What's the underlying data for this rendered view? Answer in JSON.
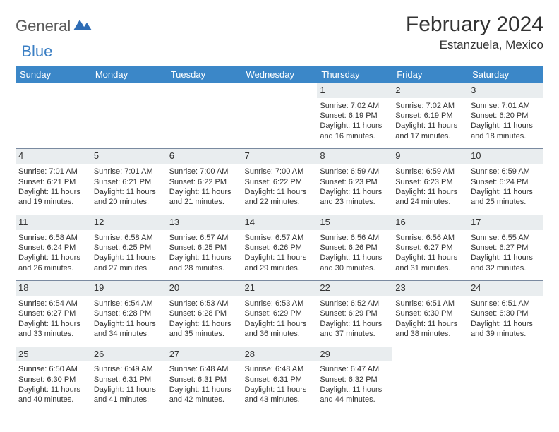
{
  "brand": {
    "general": "General",
    "blue": "Blue"
  },
  "title": "February 2024",
  "location": "Estanzuela, Mexico",
  "headers": [
    "Sunday",
    "Monday",
    "Tuesday",
    "Wednesday",
    "Thursday",
    "Friday",
    "Saturday"
  ],
  "colors": {
    "header_bg": "#3b87c8",
    "header_text": "#ffffff",
    "daynum_bg": "#e9edef",
    "border": "#7a8aa0",
    "text": "#333333",
    "logo_gray": "#5a5a5a",
    "logo_blue": "#3b7fc4",
    "background": "#ffffff"
  },
  "typography": {
    "title_fontsize": 30,
    "location_fontsize": 17,
    "header_fontsize": 13,
    "daynum_fontsize": 13,
    "cell_fontsize": 11
  },
  "layout": {
    "columns": 7,
    "rows": 5,
    "first_day_column": 4
  },
  "weeks": [
    [
      null,
      null,
      null,
      null,
      {
        "n": "1",
        "sr": "Sunrise: 7:02 AM",
        "ss": "Sunset: 6:19 PM",
        "dl": "Daylight: 11 hours and 16 minutes."
      },
      {
        "n": "2",
        "sr": "Sunrise: 7:02 AM",
        "ss": "Sunset: 6:19 PM",
        "dl": "Daylight: 11 hours and 17 minutes."
      },
      {
        "n": "3",
        "sr": "Sunrise: 7:01 AM",
        "ss": "Sunset: 6:20 PM",
        "dl": "Daylight: 11 hours and 18 minutes."
      }
    ],
    [
      {
        "n": "4",
        "sr": "Sunrise: 7:01 AM",
        "ss": "Sunset: 6:21 PM",
        "dl": "Daylight: 11 hours and 19 minutes."
      },
      {
        "n": "5",
        "sr": "Sunrise: 7:01 AM",
        "ss": "Sunset: 6:21 PM",
        "dl": "Daylight: 11 hours and 20 minutes."
      },
      {
        "n": "6",
        "sr": "Sunrise: 7:00 AM",
        "ss": "Sunset: 6:22 PM",
        "dl": "Daylight: 11 hours and 21 minutes."
      },
      {
        "n": "7",
        "sr": "Sunrise: 7:00 AM",
        "ss": "Sunset: 6:22 PM",
        "dl": "Daylight: 11 hours and 22 minutes."
      },
      {
        "n": "8",
        "sr": "Sunrise: 6:59 AM",
        "ss": "Sunset: 6:23 PM",
        "dl": "Daylight: 11 hours and 23 minutes."
      },
      {
        "n": "9",
        "sr": "Sunrise: 6:59 AM",
        "ss": "Sunset: 6:23 PM",
        "dl": "Daylight: 11 hours and 24 minutes."
      },
      {
        "n": "10",
        "sr": "Sunrise: 6:59 AM",
        "ss": "Sunset: 6:24 PM",
        "dl": "Daylight: 11 hours and 25 minutes."
      }
    ],
    [
      {
        "n": "11",
        "sr": "Sunrise: 6:58 AM",
        "ss": "Sunset: 6:24 PM",
        "dl": "Daylight: 11 hours and 26 minutes."
      },
      {
        "n": "12",
        "sr": "Sunrise: 6:58 AM",
        "ss": "Sunset: 6:25 PM",
        "dl": "Daylight: 11 hours and 27 minutes."
      },
      {
        "n": "13",
        "sr": "Sunrise: 6:57 AM",
        "ss": "Sunset: 6:25 PM",
        "dl": "Daylight: 11 hours and 28 minutes."
      },
      {
        "n": "14",
        "sr": "Sunrise: 6:57 AM",
        "ss": "Sunset: 6:26 PM",
        "dl": "Daylight: 11 hours and 29 minutes."
      },
      {
        "n": "15",
        "sr": "Sunrise: 6:56 AM",
        "ss": "Sunset: 6:26 PM",
        "dl": "Daylight: 11 hours and 30 minutes."
      },
      {
        "n": "16",
        "sr": "Sunrise: 6:56 AM",
        "ss": "Sunset: 6:27 PM",
        "dl": "Daylight: 11 hours and 31 minutes."
      },
      {
        "n": "17",
        "sr": "Sunrise: 6:55 AM",
        "ss": "Sunset: 6:27 PM",
        "dl": "Daylight: 11 hours and 32 minutes."
      }
    ],
    [
      {
        "n": "18",
        "sr": "Sunrise: 6:54 AM",
        "ss": "Sunset: 6:27 PM",
        "dl": "Daylight: 11 hours and 33 minutes."
      },
      {
        "n": "19",
        "sr": "Sunrise: 6:54 AM",
        "ss": "Sunset: 6:28 PM",
        "dl": "Daylight: 11 hours and 34 minutes."
      },
      {
        "n": "20",
        "sr": "Sunrise: 6:53 AM",
        "ss": "Sunset: 6:28 PM",
        "dl": "Daylight: 11 hours and 35 minutes."
      },
      {
        "n": "21",
        "sr": "Sunrise: 6:53 AM",
        "ss": "Sunset: 6:29 PM",
        "dl": "Daylight: 11 hours and 36 minutes."
      },
      {
        "n": "22",
        "sr": "Sunrise: 6:52 AM",
        "ss": "Sunset: 6:29 PM",
        "dl": "Daylight: 11 hours and 37 minutes."
      },
      {
        "n": "23",
        "sr": "Sunrise: 6:51 AM",
        "ss": "Sunset: 6:30 PM",
        "dl": "Daylight: 11 hours and 38 minutes."
      },
      {
        "n": "24",
        "sr": "Sunrise: 6:51 AM",
        "ss": "Sunset: 6:30 PM",
        "dl": "Daylight: 11 hours and 39 minutes."
      }
    ],
    [
      {
        "n": "25",
        "sr": "Sunrise: 6:50 AM",
        "ss": "Sunset: 6:30 PM",
        "dl": "Daylight: 11 hours and 40 minutes."
      },
      {
        "n": "26",
        "sr": "Sunrise: 6:49 AM",
        "ss": "Sunset: 6:31 PM",
        "dl": "Daylight: 11 hours and 41 minutes."
      },
      {
        "n": "27",
        "sr": "Sunrise: 6:48 AM",
        "ss": "Sunset: 6:31 PM",
        "dl": "Daylight: 11 hours and 42 minutes."
      },
      {
        "n": "28",
        "sr": "Sunrise: 6:48 AM",
        "ss": "Sunset: 6:31 PM",
        "dl": "Daylight: 11 hours and 43 minutes."
      },
      {
        "n": "29",
        "sr": "Sunrise: 6:47 AM",
        "ss": "Sunset: 6:32 PM",
        "dl": "Daylight: 11 hours and 44 minutes."
      },
      null,
      null
    ]
  ]
}
